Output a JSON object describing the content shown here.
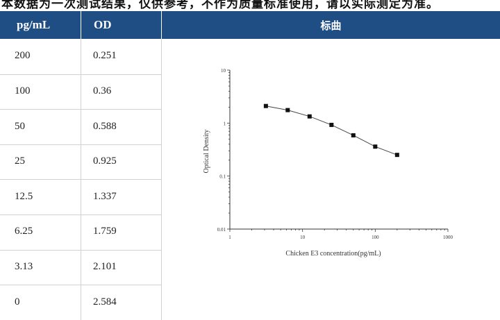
{
  "top_text": "本数据为一次测试结果，仅供参考，不作为质量标准使用，请以实际测定为准。",
  "table": {
    "headers": [
      "pg/mL",
      "OD",
      "标曲"
    ],
    "rows": [
      [
        "200",
        "0.251"
      ],
      [
        "100",
        "0.36"
      ],
      [
        "50",
        "0.588"
      ],
      [
        "25",
        "0.925"
      ],
      [
        "12.5",
        "1.337"
      ],
      [
        "6.25",
        "1.759"
      ],
      [
        "3.13",
        "2.101"
      ],
      [
        "0",
        "2.584"
      ]
    ]
  },
  "chart_data": {
    "type": "scatter",
    "xscale": "log",
    "yscale": "log",
    "xlabel": "Chicken E3 concentration(pg/mL)",
    "ylabel": "Optical Density",
    "xlim": [
      1,
      1000
    ],
    "ylim": [
      0.01,
      10
    ],
    "xticks": [
      "1",
      "10",
      "100",
      "1000"
    ],
    "yticks": [
      "0.01",
      "0.1",
      "1",
      "10"
    ],
    "x": [
      3.13,
      6.25,
      12.5,
      25,
      50,
      100,
      200
    ],
    "y": [
      2.101,
      1.759,
      1.337,
      0.925,
      0.588,
      0.36,
      0.251
    ],
    "fit_line": true,
    "grid": false,
    "marker_color": "#111111"
  }
}
